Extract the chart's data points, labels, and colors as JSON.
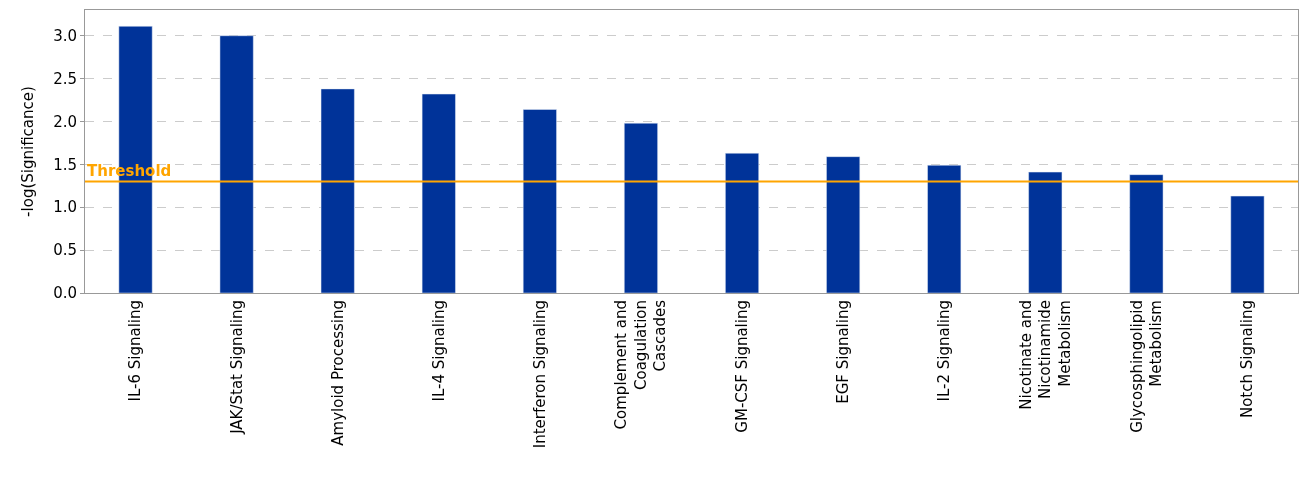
{
  "chart_data": {
    "type": "bar",
    "ylabel": "-log(Significance)",
    "categories": [
      "IL-6 Signaling",
      "JAK/Stat Signaling",
      "Amyloid Processing",
      "IL-4 Signaling",
      "Interferon Signaling",
      "Complement and\nCoagulation\nCascades",
      "GM-CSF Signaling",
      "EGF Signaling",
      "IL-2 Signaling",
      "Nicotinate and\nNicotinamide\nMetabolism",
      "Glycosphingolipid\nMetabolism",
      "Notch Signaling"
    ],
    "values": [
      3.11,
      3.0,
      2.38,
      2.32,
      2.14,
      1.98,
      1.63,
      1.59,
      1.49,
      1.41,
      1.38,
      1.13
    ],
    "color": "#003399",
    "ylim": [
      0,
      3.3
    ],
    "yticks": [
      {
        "value": 0,
        "label": "0.0"
      },
      {
        "value": 0.5,
        "label": "0.5"
      },
      {
        "value": 1,
        "label": "1.0"
      },
      {
        "value": 1.5,
        "label": "1.5"
      },
      {
        "value": 2,
        "label": "2.0"
      },
      {
        "value": 2.5,
        "label": "2.5"
      },
      {
        "value": 3,
        "label": "3.0"
      }
    ],
    "grid": "y",
    "ref_lines": [
      {
        "axis": "y",
        "value": 1.3,
        "label": "Threshold",
        "color": "#ffa500"
      }
    ]
  }
}
